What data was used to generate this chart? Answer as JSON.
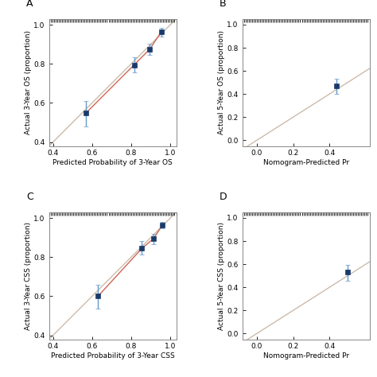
{
  "panel_A": {
    "label": "A",
    "xlabel": "Predicted Probability of 3-Year OS",
    "ylabel": "Actual 3-Year OS (proportion)",
    "xlim": [
      0.38,
      1.03
    ],
    "ylim": [
      0.38,
      1.03
    ],
    "points_x": [
      0.57,
      0.815,
      0.895,
      0.955
    ],
    "points_y": [
      0.55,
      0.795,
      0.875,
      0.965
    ],
    "yerr_low": [
      0.07,
      0.04,
      0.028,
      0.025
    ],
    "yerr_high": [
      0.06,
      0.04,
      0.028,
      0.018
    ],
    "xticks": [
      0.4,
      0.6,
      0.8,
      1.0
    ],
    "yticks": [
      0.4,
      0.6,
      0.8,
      1.0
    ],
    "rug_density": 80,
    "ref_xlim": [
      0.38,
      1.03
    ]
  },
  "panel_B": {
    "label": "B",
    "xlabel": "Nomogram-Predicted Pr",
    "ylabel": "Actual 5-Year OS (proportion)",
    "xlim": [
      -0.08,
      0.62
    ],
    "ylim": [
      -0.05,
      1.05
    ],
    "points_x": [
      0.44
    ],
    "points_y": [
      0.47
    ],
    "yerr_low": [
      0.07
    ],
    "yerr_high": [
      0.06
    ],
    "xticks": [
      0.0,
      0.2,
      0.4
    ],
    "yticks": [
      0.0,
      0.2,
      0.4,
      0.6,
      0.8,
      1.0
    ],
    "rug_density": 80,
    "ref_xlim": [
      -0.08,
      0.62
    ]
  },
  "panel_C": {
    "label": "C",
    "xlabel": "Predicted Probability of 3-Year CSS",
    "ylabel": "Actual 3-Year CSS (proportion)",
    "xlim": [
      0.38,
      1.03
    ],
    "ylim": [
      0.38,
      1.03
    ],
    "points_x": [
      0.63,
      0.855,
      0.915,
      0.96
    ],
    "points_y": [
      0.6,
      0.845,
      0.895,
      0.965
    ],
    "yerr_low": [
      0.065,
      0.032,
      0.028,
      0.018
    ],
    "yerr_high": [
      0.058,
      0.038,
      0.025,
      0.015
    ],
    "xticks": [
      0.4,
      0.6,
      0.8,
      1.0
    ],
    "yticks": [
      0.4,
      0.6,
      0.8,
      1.0
    ],
    "rug_density": 80,
    "ref_xlim": [
      0.38,
      1.03
    ]
  },
  "panel_D": {
    "label": "D",
    "xlabel": "Nomogram-Predicted Pr",
    "ylabel": "Actual 5-Year CSS (proportion)",
    "xlim": [
      -0.08,
      0.62
    ],
    "ylim": [
      -0.05,
      1.05
    ],
    "points_x": [
      0.5
    ],
    "points_y": [
      0.53
    ],
    "yerr_low": [
      0.075
    ],
    "yerr_high": [
      0.065
    ],
    "xticks": [
      0.0,
      0.2,
      0.4
    ],
    "yticks": [
      0.0,
      0.2,
      0.4,
      0.6,
      0.8,
      1.0
    ],
    "rug_density": 80,
    "ref_xlim": [
      -0.08,
      0.62
    ]
  },
  "bg_color": "#ffffff",
  "marker_color": "#1a3a6b",
  "errbar_color": "#6699cc",
  "line_color": "#cc6655",
  "ref_color": "#ccbbaa",
  "marker_style": "s",
  "marker_size": 4,
  "line_width": 1.0,
  "font_size": 6.5,
  "label_font_size": 9
}
